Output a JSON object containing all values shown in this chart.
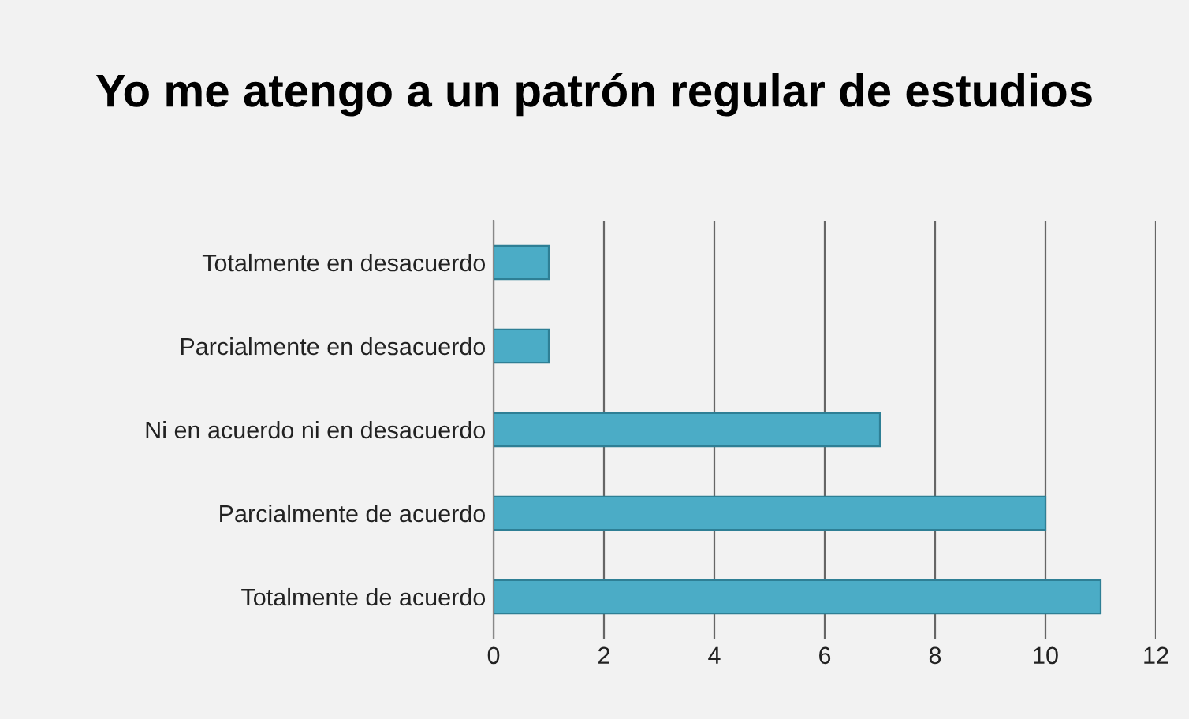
{
  "chart_data": {
    "type": "bar",
    "orientation": "horizontal",
    "title": "Yo me atengo a un patrón regular de estudios",
    "categories": [
      "Totalmente en desacuerdo",
      "Parcialmente en desacuerdo",
      "Ni en acuerdo ni en desacuerdo",
      "Parcialmente de acuerdo",
      "Totalmente de acuerdo"
    ],
    "values": [
      1,
      1,
      7,
      10,
      11
    ],
    "color": "#4bacc6",
    "xlim": [
      0,
      12
    ],
    "xticks": [
      0,
      2,
      4,
      6,
      8,
      10,
      12
    ],
    "grid": "x",
    "legend": false
  }
}
